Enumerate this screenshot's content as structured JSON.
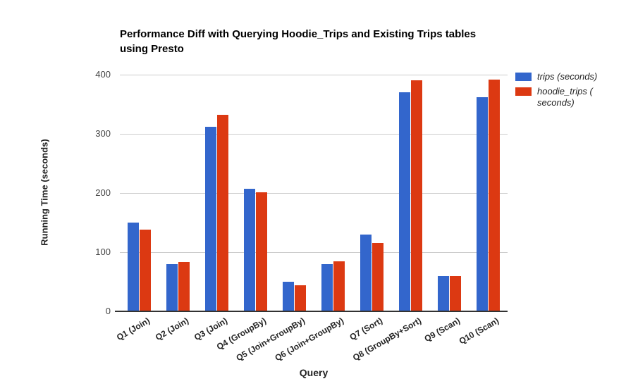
{
  "title_lines": {
    "line1": "Performance Diff with Querying Hoodie_Trips and Existing Trips tables",
    "line2": "using Presto"
  },
  "chart_data": {
    "type": "bar",
    "title": "Performance Diff with Querying Hoodie_Trips and Existing Trips tables using Presto",
    "xlabel": "Query",
    "ylabel": "Running Time (seconds)",
    "ylim": [
      0,
      400
    ],
    "y_ticks": [
      0,
      100,
      200,
      300,
      400
    ],
    "grid": true,
    "legend_position": "right",
    "categories": [
      "Q1 (Join)",
      "Q2 (Join)",
      "Q3 (Join)",
      "Q4 (GroupBy)",
      "Q5 (Join+GroupBy)",
      "Q6 (Join+GroupBy)",
      "Q7 (Sort)",
      "Q8 (GroupBy+Sort)",
      "Q9 (Scan)",
      "Q10 (Scan)"
    ],
    "series": [
      {
        "name": "trips (seconds)",
        "key": "trips",
        "color": "#3366CC",
        "values": [
          150,
          80,
          312,
          207,
          50,
          80,
          130,
          370,
          60,
          362
        ]
      },
      {
        "name": "hoodie_trips ( seconds)",
        "key": "hoodie-trips",
        "color": "#DC3912",
        "values": [
          138,
          83,
          332,
          201,
          44,
          84,
          116,
          390,
          59,
          392
        ]
      }
    ]
  }
}
